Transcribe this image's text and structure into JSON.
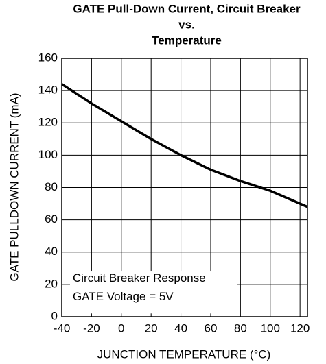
{
  "chart_data": {
    "type": "line",
    "title": [
      "GATE Pull-Down Current, Circuit Breaker",
      "vs.",
      "Temperature"
    ],
    "xlabel": "JUNCTION TEMPERATURE (°C)",
    "ylabel": "GATE PULLDOWN CURRENT (mA)",
    "annotation": [
      "Circuit Breaker Response",
      "GATE Voltage = 5V"
    ],
    "x": [
      -40,
      -20,
      0,
      20,
      40,
      60,
      80,
      100,
      125
    ],
    "series": [
      {
        "name": "Circuit Breaker Response",
        "color": "#000000",
        "values": [
          144,
          132,
          121,
          110,
          100,
          91,
          84,
          78,
          68
        ]
      }
    ],
    "xlim": [
      -40,
      125
    ],
    "xticks": [
      -40,
      -20,
      0,
      20,
      40,
      60,
      80,
      100,
      120
    ],
    "ylim": [
      0,
      160
    ],
    "yticks": [
      0,
      20,
      40,
      60,
      80,
      100,
      120,
      140,
      160
    ],
    "grid": true
  }
}
